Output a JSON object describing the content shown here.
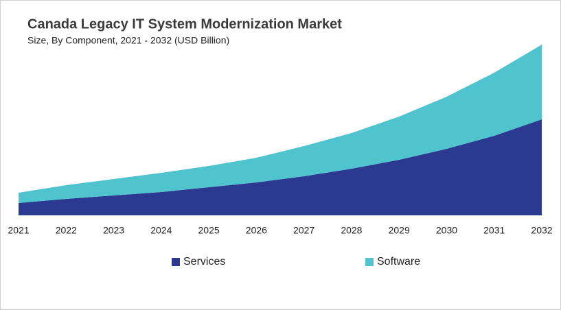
{
  "chart_data": {
    "type": "stacked-area",
    "title": "Canada Legacy IT System Modernization Market",
    "subtitle": "Size, By Component, 2021 - 2032 (USD Billion)",
    "categories": [
      "2021",
      "2022",
      "2023",
      "2024",
      "2025",
      "2026",
      "2027",
      "2028",
      "2029",
      "2030",
      "2031",
      "2032"
    ],
    "series": [
      {
        "name": "Services",
        "color": "#2b3990",
        "values": [
          0.18,
          0.24,
          0.29,
          0.34,
          0.41,
          0.48,
          0.57,
          0.68,
          0.81,
          0.97,
          1.16,
          1.4
        ]
      },
      {
        "name": "Software",
        "color": "#4fc4cf",
        "values": [
          0.15,
          0.2,
          0.24,
          0.28,
          0.31,
          0.36,
          0.44,
          0.52,
          0.63,
          0.76,
          0.92,
          1.09
        ]
      }
    ],
    "ylim": [
      0,
      2.5
    ]
  }
}
